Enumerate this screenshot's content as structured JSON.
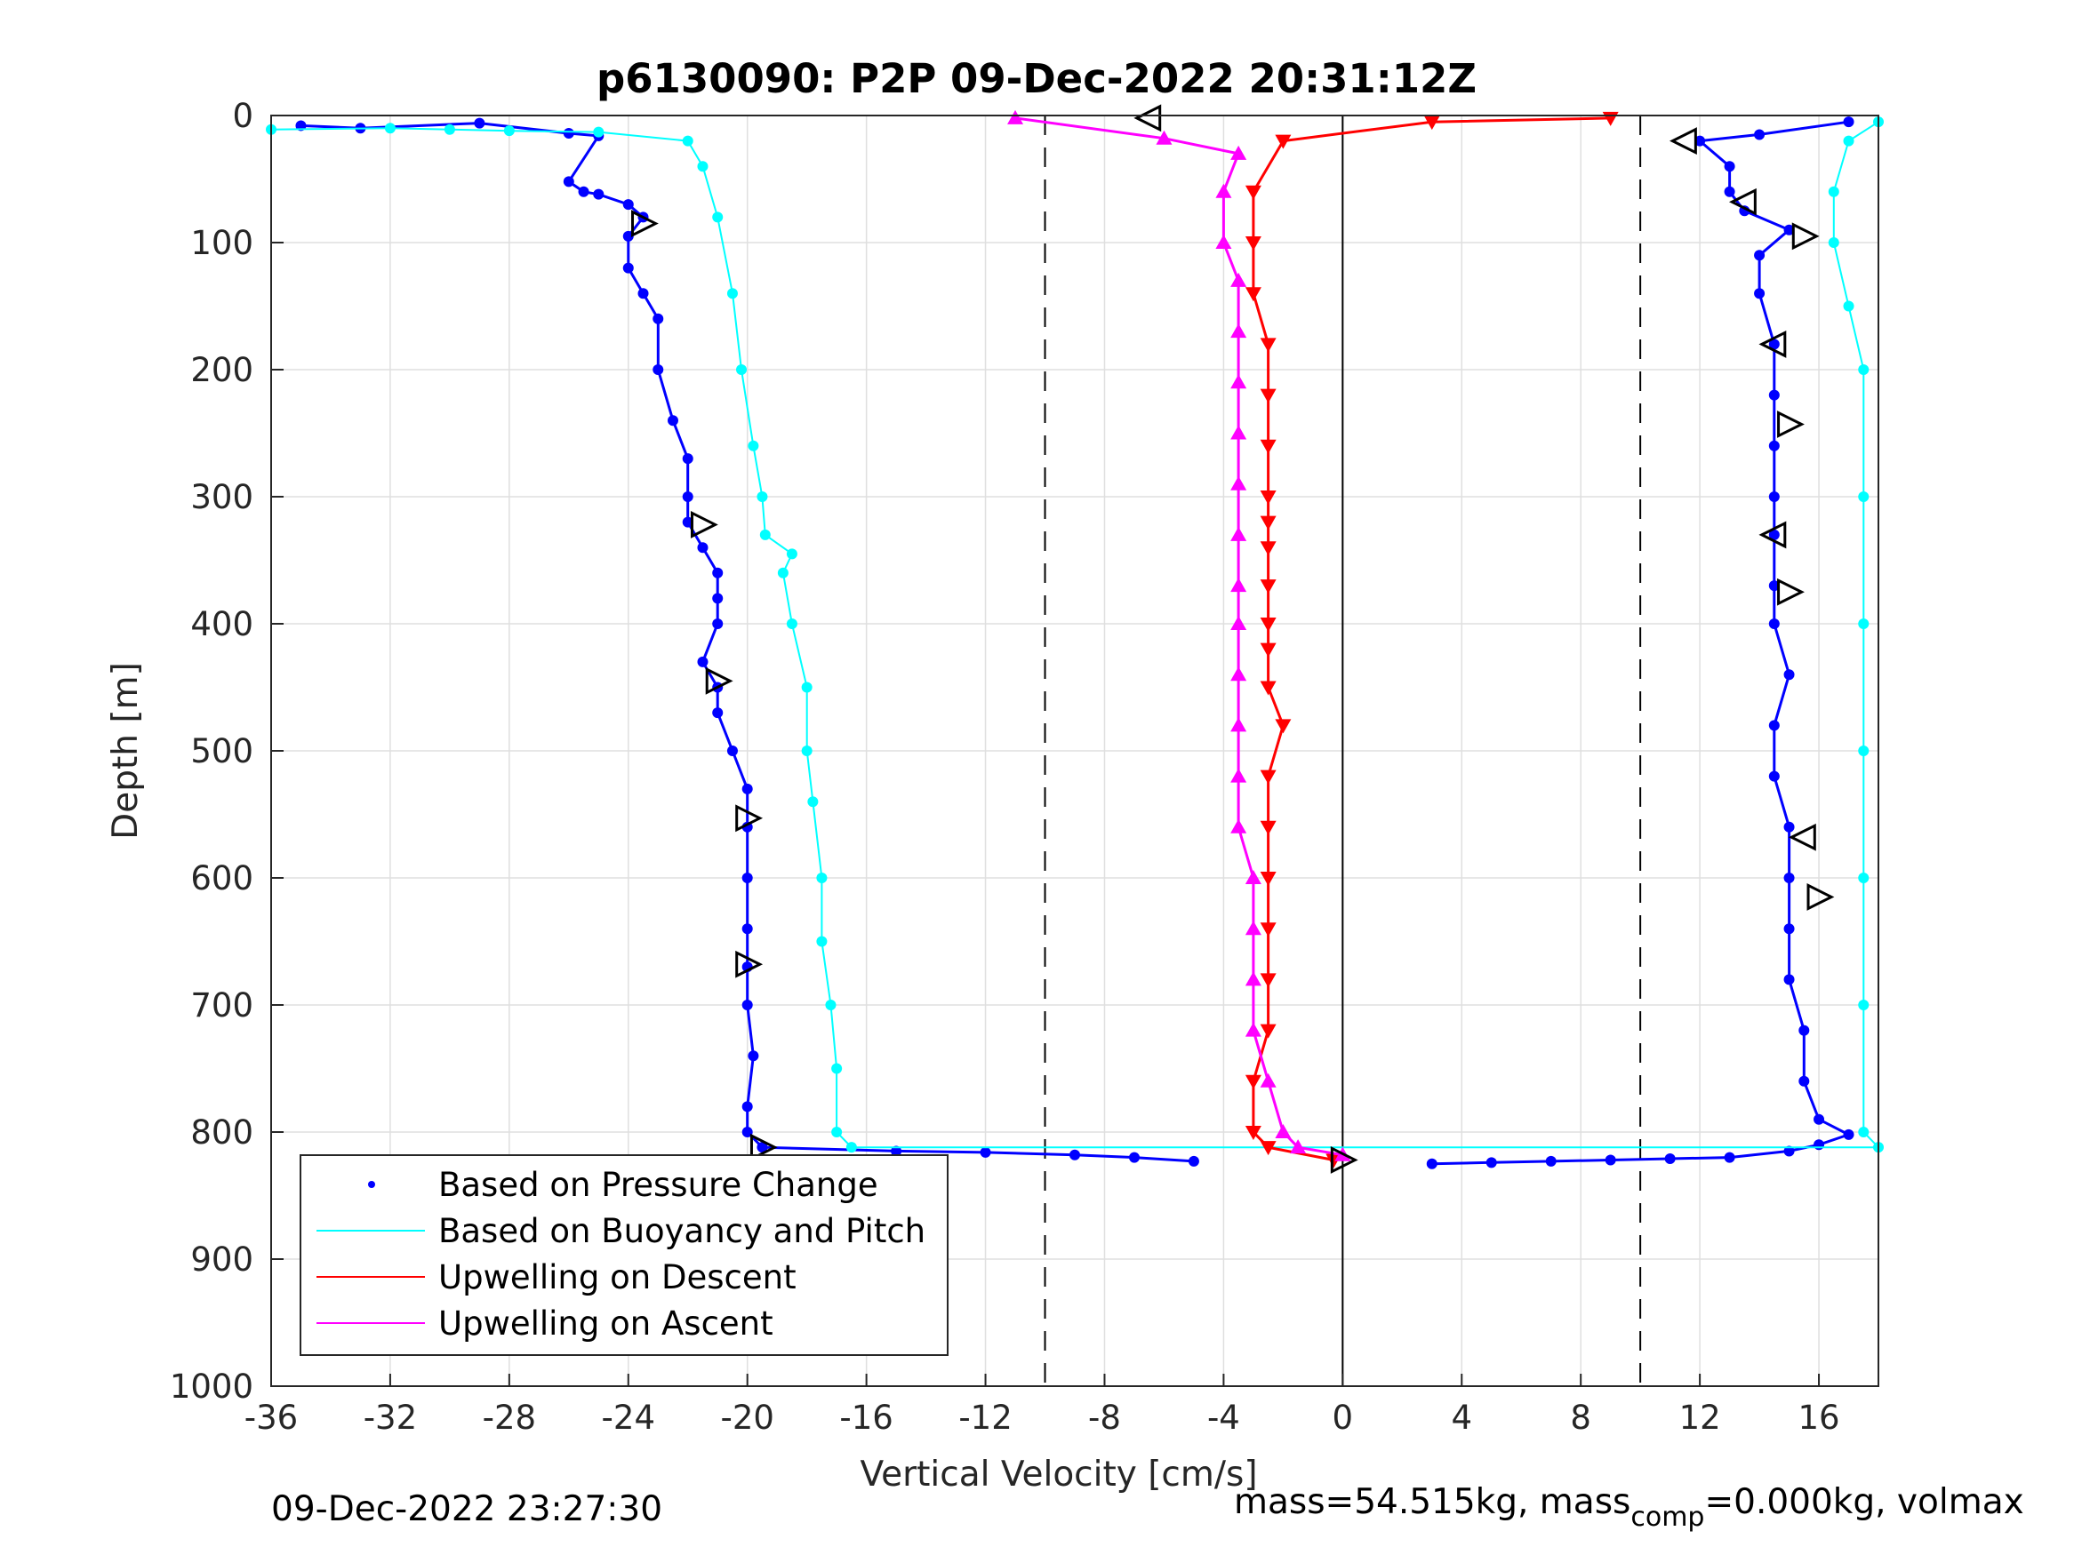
{
  "colors": {
    "pressure": "#0000ff",
    "buoyancy": "#00ffff",
    "descent": "#ff0000",
    "ascent": "#ff00ff",
    "axis": "#262626",
    "grid": "#dfdfdf"
  },
  "footer": {
    "timestamp": "09-Dec-2022 23:27:30",
    "mass_prefix": "mass=54.515kg, mass",
    "mass_sub": "comp",
    "mass_suffix": "=0.000kg, volmax"
  },
  "chart_data": {
    "type": "scatter",
    "title": "p6130090: P2P 09-Dec-2022 20:31:12Z",
    "xlabel": "Vertical Velocity [cm/s]",
    "ylabel": "Depth [m]",
    "xlim": [
      -36,
      18
    ],
    "ylim": [
      0,
      1000
    ],
    "y_reversed": true,
    "grid": true,
    "xticks": [
      -36,
      -32,
      -28,
      -24,
      -20,
      -16,
      -12,
      -8,
      -4,
      0,
      4,
      8,
      12,
      16
    ],
    "yticks": [
      0,
      100,
      200,
      300,
      400,
      500,
      600,
      700,
      800,
      900,
      1000
    ],
    "reference_lines": [
      {
        "x": -10,
        "style": "dashed"
      },
      {
        "x": 10,
        "style": "dashed"
      },
      {
        "x": 0,
        "style": "solid"
      }
    ],
    "legend_position": "bottom-left",
    "legend": [
      {
        "label": "Based on Pressure Change",
        "style": "dot",
        "color": "#0000ff"
      },
      {
        "label": "Based on Buoyancy and Pitch",
        "style": "line",
        "color": "#00ffff"
      },
      {
        "label": "Upwelling on Descent",
        "style": "line",
        "color": "#ff0000"
      },
      {
        "label": "Upwelling on Ascent",
        "style": "line",
        "color": "#ff00ff"
      }
    ],
    "series": [
      {
        "name": "Based on Pressure Change (descent)",
        "color": "#0000ff",
        "points": [
          [
            -35,
            8
          ],
          [
            -33,
            10
          ],
          [
            -29,
            6
          ],
          [
            -26,
            14
          ],
          [
            -25,
            16
          ],
          [
            -26,
            52
          ],
          [
            -25.5,
            60
          ],
          [
            -25,
            62
          ],
          [
            -24,
            70
          ],
          [
            -23.5,
            80
          ],
          [
            -24,
            95
          ],
          [
            -24,
            120
          ],
          [
            -23.5,
            140
          ],
          [
            -23,
            160
          ],
          [
            -23,
            200
          ],
          [
            -22.5,
            240
          ],
          [
            -22,
            270
          ],
          [
            -22,
            300
          ],
          [
            -22,
            320
          ],
          [
            -21.5,
            340
          ],
          [
            -21,
            360
          ],
          [
            -21,
            380
          ],
          [
            -21,
            400
          ],
          [
            -21.5,
            430
          ],
          [
            -21,
            450
          ],
          [
            -21,
            470
          ],
          [
            -20.5,
            500
          ],
          [
            -20,
            530
          ],
          [
            -20,
            560
          ],
          [
            -20,
            600
          ],
          [
            -20,
            640
          ],
          [
            -20,
            670
          ],
          [
            -20,
            700
          ],
          [
            -19.8,
            740
          ],
          [
            -20,
            780
          ],
          [
            -20,
            800
          ],
          [
            -19.5,
            812
          ],
          [
            -15,
            815
          ],
          [
            -12,
            816
          ],
          [
            -9,
            818
          ],
          [
            -7,
            820
          ],
          [
            -5,
            823
          ]
        ]
      },
      {
        "name": "Based on Pressure Change (ascent)",
        "color": "#0000ff",
        "points": [
          [
            3,
            825
          ],
          [
            5,
            824
          ],
          [
            7,
            823
          ],
          [
            9,
            822
          ],
          [
            11,
            821
          ],
          [
            13,
            820
          ],
          [
            15,
            815
          ],
          [
            16,
            810
          ],
          [
            17,
            802
          ],
          [
            16,
            790
          ],
          [
            15.5,
            760
          ],
          [
            15.5,
            720
          ],
          [
            15,
            680
          ],
          [
            15,
            640
          ],
          [
            15,
            600
          ],
          [
            15,
            560
          ],
          [
            14.5,
            520
          ],
          [
            14.5,
            480
          ],
          [
            15,
            440
          ],
          [
            14.5,
            400
          ],
          [
            14.5,
            370
          ],
          [
            14.5,
            330
          ],
          [
            14.5,
            300
          ],
          [
            14.5,
            260
          ],
          [
            14.5,
            220
          ],
          [
            14.5,
            180
          ],
          [
            14,
            140
          ],
          [
            14,
            110
          ],
          [
            15,
            90
          ],
          [
            13.5,
            75
          ],
          [
            13,
            60
          ],
          [
            13,
            40
          ],
          [
            12,
            20
          ],
          [
            14,
            15
          ],
          [
            17,
            5
          ]
        ]
      },
      {
        "name": "Based on Buoyancy and Pitch",
        "color": "#00ffff",
        "points": [
          [
            -36,
            11
          ],
          [
            -32,
            10
          ],
          [
            -30,
            11
          ],
          [
            -28,
            12
          ],
          [
            -25,
            13
          ],
          [
            -22,
            20
          ],
          [
            -21.5,
            40
          ],
          [
            -21,
            80
          ],
          [
            -20.5,
            140
          ],
          [
            -20.2,
            200
          ],
          [
            -19.8,
            260
          ],
          [
            -19.5,
            300
          ],
          [
            -19.4,
            330
          ],
          [
            -18.5,
            345
          ],
          [
            -18.8,
            360
          ],
          [
            -18.5,
            400
          ],
          [
            -18,
            450
          ],
          [
            -18,
            500
          ],
          [
            -17.8,
            540
          ],
          [
            -17.5,
            600
          ],
          [
            -17.5,
            650
          ],
          [
            -17.2,
            700
          ],
          [
            -17,
            750
          ],
          [
            -17,
            800
          ],
          [
            -16.5,
            812
          ],
          [
            18,
            812
          ],
          [
            17.5,
            800
          ],
          [
            17.5,
            700
          ],
          [
            17.5,
            600
          ],
          [
            17.5,
            500
          ],
          [
            17.5,
            400
          ],
          [
            17.5,
            300
          ],
          [
            17.5,
            200
          ],
          [
            17,
            150
          ],
          [
            16.5,
            100
          ],
          [
            16.5,
            60
          ],
          [
            17,
            20
          ],
          [
            18,
            5
          ]
        ]
      },
      {
        "name": "Upwelling on Descent",
        "color": "#ff0000",
        "points": [
          [
            -0.3,
            822
          ],
          [
            -2.5,
            812
          ],
          [
            -3,
            800
          ],
          [
            -3,
            760
          ],
          [
            -2.5,
            720
          ],
          [
            -2.5,
            680
          ],
          [
            -2.5,
            640
          ],
          [
            -2.5,
            600
          ],
          [
            -2.5,
            560
          ],
          [
            -2.5,
            520
          ],
          [
            -2,
            480
          ],
          [
            -2.5,
            450
          ],
          [
            -2.5,
            420
          ],
          [
            -2.5,
            400
          ],
          [
            -2.5,
            370
          ],
          [
            -2.5,
            340
          ],
          [
            -2.5,
            320
          ],
          [
            -2.5,
            300
          ],
          [
            -2.5,
            260
          ],
          [
            -2.5,
            220
          ],
          [
            -2.5,
            180
          ],
          [
            -3,
            140
          ],
          [
            -3,
            100
          ],
          [
            -3,
            60
          ],
          [
            -2,
            20
          ],
          [
            3,
            5
          ],
          [
            9,
            2
          ]
        ]
      },
      {
        "name": "Upwelling on Ascent",
        "color": "#ff00ff",
        "points": [
          [
            0,
            818
          ],
          [
            -1.5,
            812
          ],
          [
            -2,
            800
          ],
          [
            -2.5,
            760
          ],
          [
            -3,
            720
          ],
          [
            -3,
            680
          ],
          [
            -3,
            640
          ],
          [
            -3,
            600
          ],
          [
            -3.5,
            560
          ],
          [
            -3.5,
            520
          ],
          [
            -3.5,
            480
          ],
          [
            -3.5,
            440
          ],
          [
            -3.5,
            400
          ],
          [
            -3.5,
            370
          ],
          [
            -3.5,
            330
          ],
          [
            -3.5,
            290
          ],
          [
            -3.5,
            250
          ],
          [
            -3.5,
            210
          ],
          [
            -3.5,
            170
          ],
          [
            -3.5,
            130
          ],
          [
            -4,
            100
          ],
          [
            -4,
            60
          ],
          [
            -3.5,
            30
          ],
          [
            -6,
            18
          ],
          [
            -11,
            2
          ]
        ]
      }
    ],
    "markers": [
      {
        "x": -23.5,
        "y": 85,
        "shape": "triangle-right"
      },
      {
        "x": -21.5,
        "y": 322,
        "shape": "triangle-right"
      },
      {
        "x": -21,
        "y": 445,
        "shape": "triangle-right"
      },
      {
        "x": -20,
        "y": 553,
        "shape": "triangle-right"
      },
      {
        "x": -20,
        "y": 668,
        "shape": "triangle-right"
      },
      {
        "x": -19.5,
        "y": 812,
        "shape": "triangle-right"
      },
      {
        "x": -6.5,
        "y": 2,
        "shape": "triangle-left"
      },
      {
        "x": 0,
        "y": 822,
        "shape": "triangle-right"
      },
      {
        "x": 11.5,
        "y": 20,
        "shape": "triangle-left"
      },
      {
        "x": 13.5,
        "y": 68,
        "shape": "triangle-left"
      },
      {
        "x": 15.5,
        "y": 95,
        "shape": "triangle-right"
      },
      {
        "x": 14.5,
        "y": 180,
        "shape": "triangle-left"
      },
      {
        "x": 15,
        "y": 243,
        "shape": "triangle-right"
      },
      {
        "x": 14.5,
        "y": 330,
        "shape": "triangle-left"
      },
      {
        "x": 15,
        "y": 375,
        "shape": "triangle-right"
      },
      {
        "x": 15.5,
        "y": 568,
        "shape": "triangle-left"
      },
      {
        "x": 16,
        "y": 615,
        "shape": "triangle-right"
      }
    ]
  }
}
